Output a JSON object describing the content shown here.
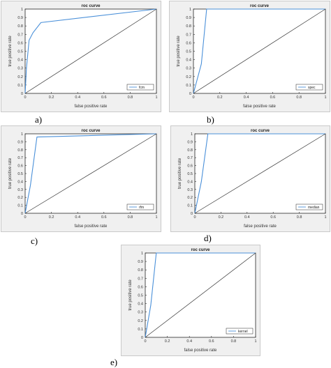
{
  "figure": {
    "charts": [
      {
        "id": "a",
        "caption": "a)",
        "title": "roc curve",
        "xlabel": "false positive rate",
        "ylabel": "true positive rate",
        "legend": "fcm"
      },
      {
        "id": "b",
        "caption": "b)",
        "title": "roc curve",
        "xlabel": "false positive rate",
        "ylabel": "true positive rate",
        "legend": "spec"
      },
      {
        "id": "c",
        "caption": "c)",
        "title": "roc curve",
        "xlabel": "false positive rate",
        "ylabel": "true positive rate",
        "legend": "rfm"
      },
      {
        "id": "d",
        "caption": "d)",
        "title": "roc curve",
        "xlabel": "false positive rate",
        "ylabel": "true positive rate",
        "legend": "median"
      },
      {
        "id": "e",
        "caption": "e)",
        "title": "roc curve",
        "xlabel": "false positive rate",
        "ylabel": "true positive rate",
        "legend": "kernel"
      }
    ]
  },
  "chart_data": [
    {
      "type": "line",
      "title": "roc curve",
      "xlabel": "false positive rate",
      "ylabel": "true positive rate",
      "xlim": [
        0,
        1
      ],
      "ylim": [
        0,
        1
      ],
      "xticks": [
        0,
        0.2,
        0.4,
        0.6,
        0.8,
        1
      ],
      "yticks": [
        0,
        0.1,
        0.2,
        0.3,
        0.4,
        0.5,
        0.6,
        0.7,
        0.8,
        0.9,
        1
      ],
      "grid": false,
      "legend_position": "bottom-right",
      "series": [
        {
          "name": "fcm",
          "color": "#4a90d9",
          "x": [
            0,
            0.01,
            0.03,
            0.06,
            0.12,
            1
          ],
          "y": [
            0,
            0.3,
            0.63,
            0.72,
            0.84,
            1
          ]
        },
        {
          "color": "#333333",
          "x": [
            0,
            1
          ],
          "y": [
            0,
            1
          ]
        }
      ]
    },
    {
      "type": "line",
      "title": "roc curve",
      "xlabel": "false positive rate",
      "ylabel": "true positive rate",
      "xlim": [
        0,
        1
      ],
      "ylim": [
        0,
        1
      ],
      "xticks": [
        0,
        0.2,
        0.4,
        0.6,
        0.8,
        1
      ],
      "yticks": [
        0,
        0.1,
        0.2,
        0.3,
        0.4,
        0.5,
        0.6,
        0.7,
        0.8,
        0.9,
        1
      ],
      "grid": false,
      "legend_position": "bottom-right",
      "series": [
        {
          "name": "spec",
          "color": "#4a90d9",
          "x": [
            0,
            0.06,
            0.1,
            1
          ],
          "y": [
            0,
            0.35,
            1,
            1
          ]
        },
        {
          "color": "#333333",
          "x": [
            0,
            1
          ],
          "y": [
            0,
            1
          ]
        }
      ]
    },
    {
      "type": "line",
      "title": "roc curve",
      "xlabel": "false positive rate",
      "ylabel": "true positive rate",
      "xlim": [
        0,
        1
      ],
      "ylim": [
        0,
        1
      ],
      "xticks": [
        0,
        0.2,
        0.4,
        0.6,
        0.8,
        1
      ],
      "yticks": [
        0,
        0.1,
        0.2,
        0.3,
        0.4,
        0.5,
        0.6,
        0.7,
        0.8,
        0.9,
        1
      ],
      "grid": false,
      "legend_position": "bottom-right",
      "series": [
        {
          "name": "rfm",
          "color": "#4a90d9",
          "x": [
            0,
            0.04,
            0.09,
            1
          ],
          "y": [
            0,
            0.35,
            0.96,
            1
          ]
        },
        {
          "color": "#333333",
          "x": [
            0,
            1
          ],
          "y": [
            0,
            1
          ]
        }
      ]
    },
    {
      "type": "line",
      "title": "roc curve",
      "xlabel": "false positive rate",
      "ylabel": "true positive rate",
      "xlim": [
        0,
        1
      ],
      "ylim": [
        0,
        1
      ],
      "xticks": [
        0,
        0.2,
        0.4,
        0.6,
        0.8,
        1
      ],
      "yticks": [
        0,
        0.1,
        0.2,
        0.3,
        0.4,
        0.5,
        0.6,
        0.7,
        0.8,
        0.9,
        1
      ],
      "grid": false,
      "legend_position": "bottom-right",
      "series": [
        {
          "name": "median",
          "color": "#4a90d9",
          "x": [
            0,
            0.05,
            0.1,
            1
          ],
          "y": [
            0,
            0.4,
            1,
            1
          ]
        },
        {
          "color": "#333333",
          "x": [
            0,
            1
          ],
          "y": [
            0,
            1
          ]
        }
      ]
    },
    {
      "type": "line",
      "title": "roc curve",
      "xlabel": "false positive rate",
      "ylabel": "true positive rate",
      "xlim": [
        0,
        1
      ],
      "ylim": [
        0,
        1
      ],
      "xticks": [
        0,
        0.2,
        0.4,
        0.6,
        0.8,
        1
      ],
      "yticks": [
        0,
        0.1,
        0.2,
        0.3,
        0.4,
        0.5,
        0.6,
        0.7,
        0.8,
        0.9,
        1
      ],
      "grid": false,
      "legend_position": "bottom-right",
      "series": [
        {
          "name": "kernel",
          "color": "#4a90d9",
          "x": [
            0,
            0.05,
            0.1,
            1
          ],
          "y": [
            0,
            0.38,
            1,
            1
          ]
        },
        {
          "color": "#333333",
          "x": [
            0,
            1
          ],
          "y": [
            0,
            1
          ]
        }
      ]
    }
  ]
}
